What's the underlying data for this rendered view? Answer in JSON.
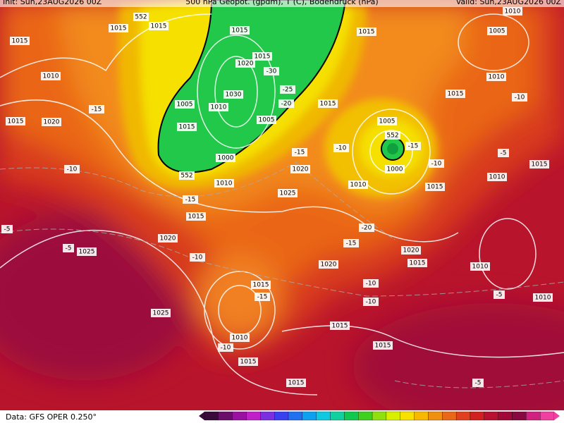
{
  "header": {
    "init": "Init: Sun,23AUG2026 00Z",
    "title": "500 hPa Geopot. (gpdm), T (C), Bodendruck (hPa)",
    "valid": "Valid: Sun,23AUG2026 00Z"
  },
  "footer": {
    "source": "Data: GFS OPER 0.250°"
  },
  "map": {
    "labels": [
      "1015",
      "1010",
      "1015",
      "1020",
      "-15",
      "-10",
      "-5",
      "-5",
      "1025",
      "1025",
      "1020",
      "-10",
      "1015",
      "-15",
      "1010",
      "552",
      "1015",
      "1015",
      "552",
      "1015",
      "1015",
      "1020",
      "-30",
      "1030",
      "1010",
      "1005",
      "1015",
      "1005",
      "1000",
      "-25",
      "-20",
      "1015",
      "-15",
      "1020",
      "1025",
      "-10",
      "1005",
      "552",
      "-15",
      "1000",
      "1010",
      "-10",
      "1015",
      "-20",
      "-15",
      "1020",
      "1015",
      "1020",
      "1010",
      "-10",
      "-10",
      "1015",
      "-15",
      "1010",
      "-10",
      "1015",
      "1015",
      "1015",
      "1015",
      "-5",
      "-5",
      "1010",
      "1010",
      "1015",
      "-5",
      "-10",
      "1015",
      "1010",
      "1005",
      "1010",
      "1015"
    ]
  }
}
